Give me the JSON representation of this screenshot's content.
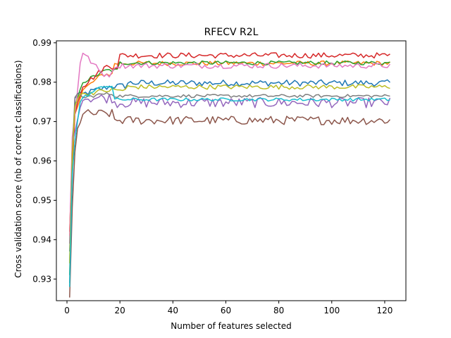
{
  "chart_data": {
    "type": "line",
    "title": "RFECV R2L",
    "xlabel": "Number of features selected",
    "ylabel": "Cross validation score (nb of correct classifications)",
    "xlim": [
      -4,
      128
    ],
    "ylim": [
      0.9245,
      0.9905
    ],
    "xticks": [
      0,
      20,
      40,
      60,
      80,
      100,
      120
    ],
    "yticks": [
      0.93,
      0.94,
      0.95,
      0.96,
      0.97,
      0.98,
      0.99
    ],
    "ytick_labels": [
      "0.93",
      "0.94",
      "0.95",
      "0.96",
      "0.97",
      "0.98",
      "0.99"
    ],
    "grid": false,
    "legend": "none",
    "x_range": [
      1,
      122
    ],
    "series": [
      {
        "color": "#1f77b4",
        "start": 0.937,
        "ramp": [
          0.955,
          0.976,
          0.977,
          0.977,
          0.977
        ],
        "rise": 0.979,
        "rise_at": 15,
        "plateau": 0.9798,
        "noise": 0.0008
      },
      {
        "color": "#ff7f0e",
        "start": 0.934,
        "ramp": [
          0.958,
          0.972,
          0.974,
          0.976,
          0.978
        ],
        "rise": 0.982,
        "rise_at": 10,
        "plateau": 0.9848,
        "noise": 0.0006
      },
      {
        "color": "#2ca02c",
        "start": 0.931,
        "ramp": [
          0.962,
          0.974,
          0.976,
          0.978,
          0.98
        ],
        "rise": 0.983,
        "rise_at": 12,
        "plateau": 0.9849,
        "noise": 0.0005
      },
      {
        "color": "#d62728",
        "start": 0.942,
        "ramp": [
          0.962,
          0.972,
          0.975,
          0.977,
          0.979
        ],
        "rise": 0.984,
        "rise_at": 12,
        "plateau": 0.9868,
        "noise": 0.0007
      },
      {
        "color": "#9467bd",
        "start": 0.939,
        "ramp": [
          0.964,
          0.968,
          0.97,
          0.974,
          0.976
        ],
        "rise": 0.976,
        "rise_at": 10,
        "plateau": 0.9748,
        "noise": 0.0013
      },
      {
        "color": "#8c564b",
        "start": 0.9253,
        "ramp": [
          0.948,
          0.962,
          0.968,
          0.97,
          0.972
        ],
        "rise": 0.972,
        "rise_at": 10,
        "plateau": 0.9703,
        "noise": 0.0011
      },
      {
        "color": "#e377c2",
        "start": 0.941,
        "ramp": [
          0.966,
          0.972,
          0.978,
          0.985,
          0.9875
        ],
        "rise": 0.982,
        "rise_at": 10,
        "plateau": 0.9842,
        "noise": 0.0007
      },
      {
        "color": "#7f7f7f",
        "start": 0.929,
        "ramp": [
          0.962,
          0.976,
          0.977,
          0.977,
          0.976
        ],
        "rise": 0.977,
        "rise_at": 10,
        "plateau": 0.9765,
        "noise": 0.0004
      },
      {
        "color": "#bcbd22",
        "start": 0.934,
        "ramp": [
          0.962,
          0.974,
          0.976,
          0.977,
          0.977
        ],
        "rise": 0.978,
        "rise_at": 15,
        "plateau": 0.9788,
        "noise": 0.0006
      },
      {
        "color": "#17becf",
        "start": 0.928,
        "ramp": [
          0.957,
          0.965,
          0.97,
          0.975,
          0.976
        ],
        "rise": 0.979,
        "rise_at": 10,
        "plateau": 0.9756,
        "noise": 0.0004
      }
    ]
  }
}
